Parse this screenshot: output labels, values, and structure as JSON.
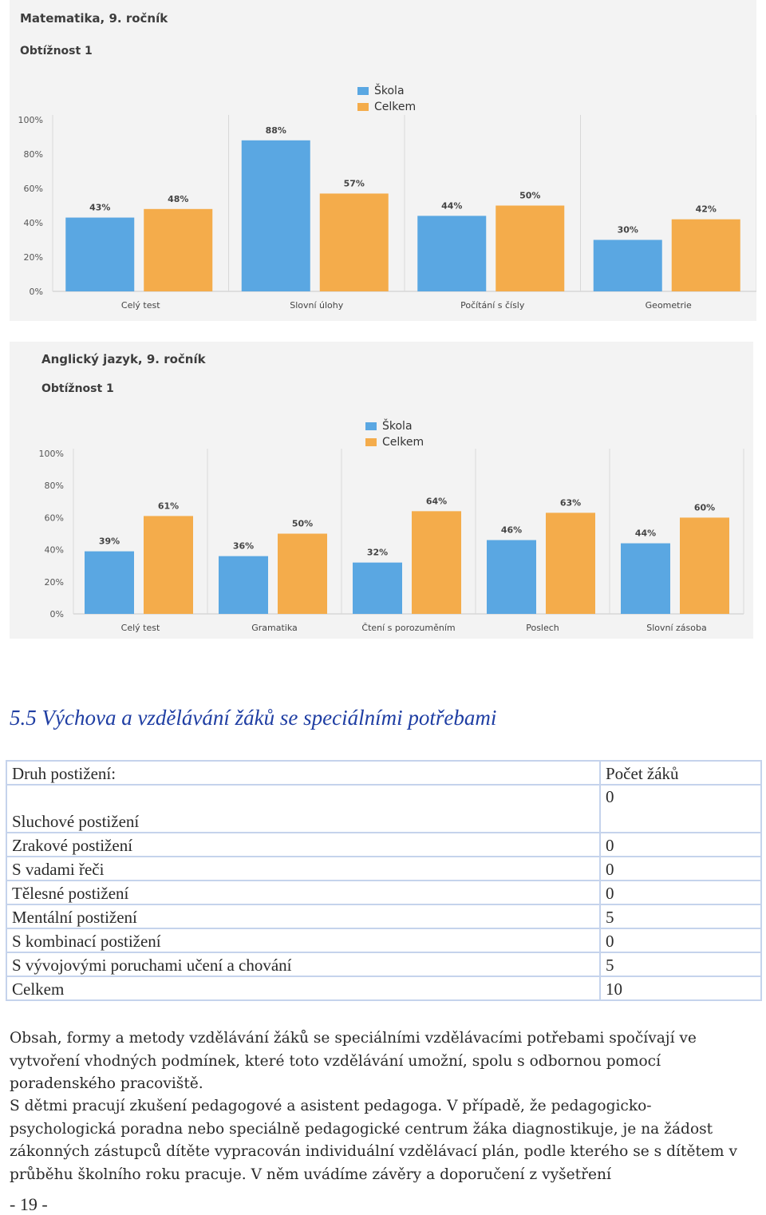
{
  "charts": [
    {
      "title": "Matematika, 9. ročník",
      "subtitle": "Obtížnost 1",
      "legend": [
        "Škola",
        "Celkem"
      ]
    },
    {
      "title": "Anglický jazyk, 9. ročník",
      "subtitle": "Obtížnost 1",
      "legend": [
        "Škola",
        "Celkem"
      ]
    }
  ],
  "chart_data": [
    {
      "type": "bar",
      "title": "Matematika, 9. ročník",
      "subtitle": "Obtížnost 1",
      "categories": [
        "Celý test",
        "Slovní úlohy",
        "Počítání s čísly",
        "Geometrie"
      ],
      "series": [
        {
          "name": "Škola",
          "values": [
            43,
            88,
            44,
            30
          ]
        },
        {
          "name": "Celkem",
          "values": [
            48,
            57,
            50,
            42
          ]
        }
      ],
      "data_labels": [
        [
          "43%",
          "88%",
          "44%",
          "30%"
        ],
        [
          "48%",
          "57%",
          "50%",
          "42%"
        ]
      ],
      "y_ticks": [
        "0%",
        "20%",
        "40%",
        "60%",
        "80%",
        "100%"
      ],
      "ylim": [
        0,
        100
      ],
      "xlabel": "",
      "ylabel": "",
      "grid": "vertical",
      "legend_position": "top-center",
      "colors": [
        "#5aa7e2",
        "#f4ac4b"
      ]
    },
    {
      "type": "bar",
      "title": "Anglický jazyk, 9. ročník",
      "subtitle": "Obtížnost 1",
      "categories": [
        "Celý test",
        "Gramatika",
        "Čtení s porozuměním",
        "Poslech",
        "Slovní zásoba"
      ],
      "series": [
        {
          "name": "Škola",
          "values": [
            39,
            36,
            32,
            46,
            44
          ]
        },
        {
          "name": "Celkem",
          "values": [
            61,
            50,
            64,
            63,
            60
          ]
        }
      ],
      "data_labels": [
        [
          "39%",
          "36%",
          "32%",
          "46%",
          "44%"
        ],
        [
          "61%",
          "50%",
          "64%",
          "63%",
          "60%"
        ]
      ],
      "y_ticks": [
        "0%",
        "20%",
        "40%",
        "60%",
        "80%",
        "100%"
      ],
      "ylim": [
        0,
        100
      ],
      "xlabel": "",
      "ylabel": "",
      "grid": "vertical",
      "legend_position": "top-center",
      "colors": [
        "#5aa7e2",
        "#f4ac4b"
      ]
    }
  ],
  "section_heading": "5.5 Výchova a vzdělávání žáků se speciálními potřebami",
  "table": {
    "header": {
      "label": "Druh postižení:",
      "count": "Počet žáků"
    },
    "rows": [
      {
        "label": "Sluchové postižení",
        "count": "0"
      },
      {
        "label": "Zrakové postižení",
        "count": "0"
      },
      {
        "label": "S vadami řeči",
        "count": "0"
      },
      {
        "label": "Tělesné postižení",
        "count": "0"
      },
      {
        "label": "Mentální  postižení",
        "count": "5"
      },
      {
        "label": "S kombinací postižení",
        "count": "0"
      },
      {
        "label": "S vývojovými poruchami učení a chování",
        "count": "5"
      },
      {
        "label": "Celkem",
        "count": "10"
      }
    ]
  },
  "paragraphs": [
    "Obsah, formy a metody vzdělávání žáků se speciálními vzdělávacími potřebami spočívají ve vytvoření vhodných podmínek, které toto vzdělávání umožní, spolu s odbornou pomocí poradenského pracoviště.",
    "S dětmi pracují zkušení pedagogové a asistent pedagoga. V případě, že pedagogicko-psychologická poradna nebo speciálně pedagogické centrum žáka diagnostikuje, je na žádost zákonných zástupců dítěte  vypracován  individuální vzdělávací plán, podle kterého se s dítětem v průběhu školního roku pracuje. V něm uvádíme závěry a doporučení z vyšetření"
  ],
  "page_number": "- 19 -"
}
